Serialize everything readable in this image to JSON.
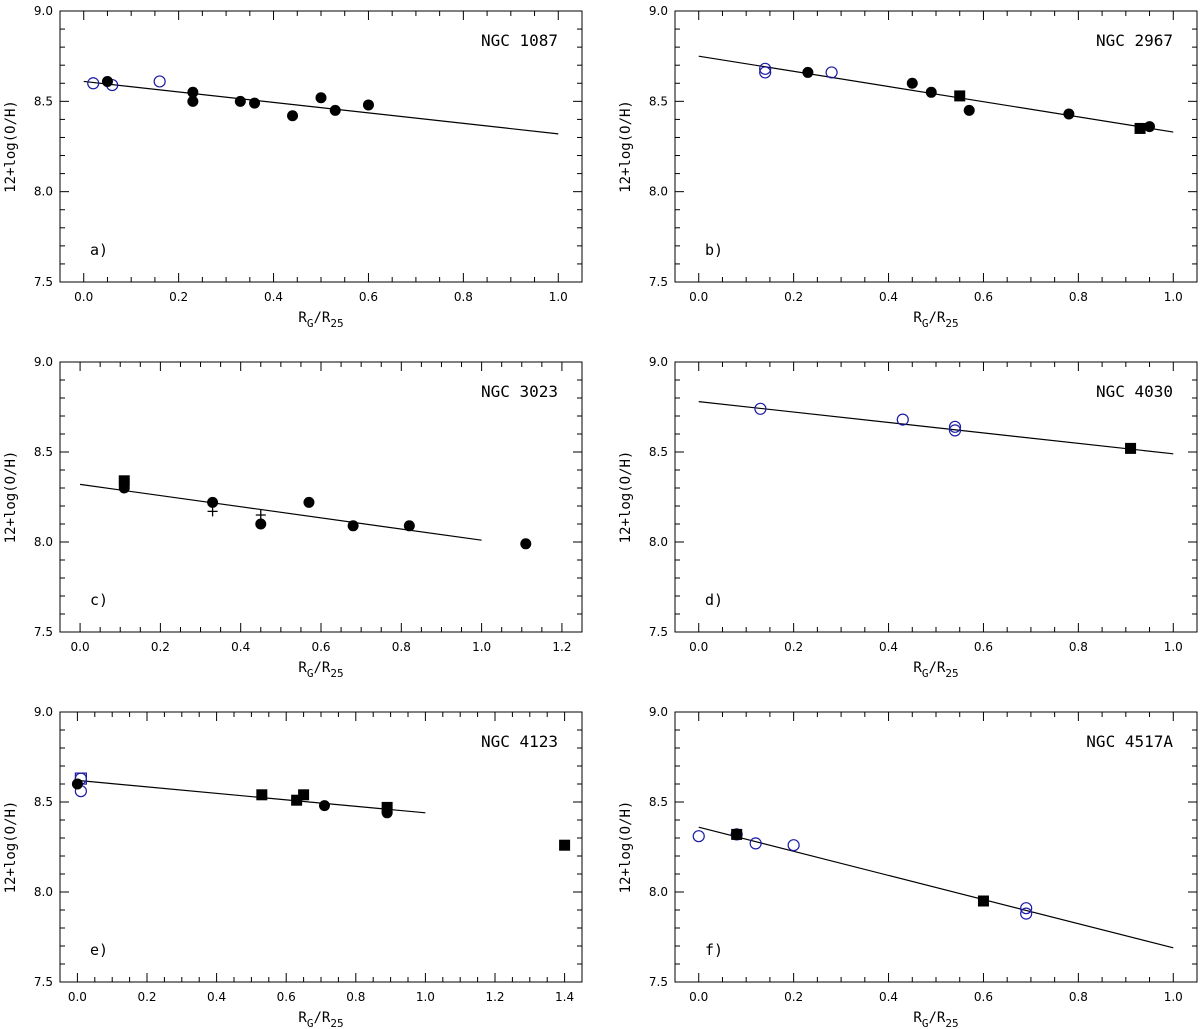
{
  "figure": {
    "ylabel": "12+log(O/H)",
    "xlabel_main": "R",
    "xlabel_sub1": "G",
    "xlabel_mid": "/R",
    "xlabel_sub2": "25"
  },
  "colors": {
    "open_marker": "#1a1aa6",
    "filled_marker": "#000000",
    "line": "#000000"
  },
  "chart_data": [
    {
      "type": "scatter",
      "panel": "a)",
      "title": "NGC 1087",
      "xlim": [
        -0.05,
        1.05
      ],
      "ylim": [
        7.5,
        9.0
      ],
      "xticks": [
        "0.0",
        "0.2",
        "0.4",
        "0.6",
        "0.8",
        "1.0"
      ],
      "yticks": [
        "7.5",
        "8.0",
        "8.5",
        "9.0"
      ],
      "fit": {
        "x": [
          0.0,
          1.0
        ],
        "y": [
          8.61,
          8.32
        ]
      },
      "series": [
        {
          "name": "open circles",
          "marker": "open-circle",
          "x": [
            0.02,
            0.06,
            0.16
          ],
          "y": [
            8.6,
            8.59,
            8.61
          ]
        },
        {
          "name": "filled circles",
          "marker": "filled-circle",
          "x": [
            0.05,
            0.23,
            0.23,
            0.33,
            0.36,
            0.44,
            0.5,
            0.53,
            0.6
          ],
          "y": [
            8.61,
            8.55,
            8.5,
            8.5,
            8.49,
            8.42,
            8.52,
            8.45,
            8.48
          ]
        }
      ]
    },
    {
      "type": "scatter",
      "panel": "b)",
      "title": "NGC 2967",
      "xlim": [
        -0.05,
        1.05
      ],
      "ylim": [
        7.5,
        9.0
      ],
      "xticks": [
        "0.0",
        "0.2",
        "0.4",
        "0.6",
        "0.8",
        "1.0"
      ],
      "yticks": [
        "7.5",
        "8.0",
        "8.5",
        "9.0"
      ],
      "fit": {
        "x": [
          0.0,
          1.0
        ],
        "y": [
          8.75,
          8.33
        ]
      },
      "series": [
        {
          "name": "open circles",
          "marker": "open-circle",
          "x": [
            0.14,
            0.14,
            0.28
          ],
          "y": [
            8.66,
            8.68,
            8.66
          ]
        },
        {
          "name": "filled circles",
          "marker": "filled-circle",
          "x": [
            0.23,
            0.45,
            0.49,
            0.57,
            0.78,
            0.95
          ],
          "y": [
            8.66,
            8.6,
            8.55,
            8.45,
            8.43,
            8.36
          ]
        },
        {
          "name": "filled squares",
          "marker": "filled-square",
          "x": [
            0.55,
            0.93
          ],
          "y": [
            8.53,
            8.35
          ]
        }
      ]
    },
    {
      "type": "scatter",
      "panel": "c)",
      "title": "NGC 3023",
      "xlim": [
        -0.05,
        1.25
      ],
      "ylim": [
        7.5,
        9.0
      ],
      "xticks": [
        "0.0",
        "0.2",
        "0.4",
        "0.6",
        "0.8",
        "1.0",
        "1.2"
      ],
      "yticks": [
        "7.5",
        "8.0",
        "8.5",
        "9.0"
      ],
      "fit": {
        "x": [
          0.0,
          1.0
        ],
        "y": [
          8.32,
          8.01
        ]
      },
      "series": [
        {
          "name": "filled circles",
          "marker": "filled-circle",
          "x": [
            0.11,
            0.33,
            0.45,
            0.57,
            0.68,
            0.82,
            1.11
          ],
          "y": [
            8.3,
            8.22,
            8.1,
            8.22,
            8.09,
            8.09,
            7.99
          ]
        },
        {
          "name": "filled squares",
          "marker": "filled-square",
          "x": [
            0.11
          ],
          "y": [
            8.34
          ]
        },
        {
          "name": "crosses",
          "marker": "cross",
          "x": [
            0.33,
            0.45
          ],
          "y": [
            8.17,
            8.15
          ]
        }
      ]
    },
    {
      "type": "scatter",
      "panel": "d)",
      "title": "NGC 4030",
      "xlim": [
        -0.05,
        1.05
      ],
      "ylim": [
        7.5,
        9.0
      ],
      "xticks": [
        "0.0",
        "0.2",
        "0.4",
        "0.6",
        "0.8",
        "1.0"
      ],
      "yticks": [
        "7.5",
        "8.0",
        "8.5",
        "9.0"
      ],
      "fit": {
        "x": [
          0.0,
          1.0
        ],
        "y": [
          8.78,
          8.49
        ]
      },
      "series": [
        {
          "name": "open circles",
          "marker": "open-circle",
          "x": [
            0.13,
            0.43,
            0.54,
            0.54
          ],
          "y": [
            8.74,
            8.68,
            8.62,
            8.64
          ]
        },
        {
          "name": "filled squares",
          "marker": "filled-square",
          "x": [
            0.91
          ],
          "y": [
            8.52
          ]
        }
      ]
    },
    {
      "type": "scatter",
      "panel": "e)",
      "title": "NGC 4123",
      "xlim": [
        -0.05,
        1.45
      ],
      "ylim": [
        7.5,
        9.0
      ],
      "xticks": [
        "0.0",
        "0.2",
        "0.4",
        "0.6",
        "0.8",
        "1.0",
        "1.2",
        "1.4"
      ],
      "yticks": [
        "7.5",
        "8.0",
        "8.5",
        "9.0"
      ],
      "fit": {
        "x": [
          0.0,
          1.0
        ],
        "y": [
          8.62,
          8.44
        ]
      },
      "series": [
        {
          "name": "open circles",
          "marker": "open-circle",
          "x": [
            0.01,
            0.01
          ],
          "y": [
            8.56,
            8.63
          ]
        },
        {
          "name": "open squares",
          "marker": "open-square",
          "x": [
            0.01
          ],
          "y": [
            8.63
          ]
        },
        {
          "name": "filled circles",
          "marker": "filled-circle",
          "x": [
            0.0,
            0.71,
            0.89
          ],
          "y": [
            8.6,
            8.48,
            8.44
          ]
        },
        {
          "name": "filled squares",
          "marker": "filled-square",
          "x": [
            0.53,
            0.63,
            0.65,
            0.89,
            1.4
          ],
          "y": [
            8.54,
            8.51,
            8.54,
            8.47,
            8.26
          ]
        }
      ]
    },
    {
      "type": "scatter",
      "panel": "f)",
      "title": "NGC 4517A",
      "xlim": [
        -0.05,
        1.05
      ],
      "ylim": [
        7.5,
        9.0
      ],
      "xticks": [
        "0.0",
        "0.2",
        "0.4",
        "0.6",
        "0.8",
        "1.0"
      ],
      "yticks": [
        "7.5",
        "8.0",
        "8.5",
        "9.0"
      ],
      "fit": {
        "x": [
          0.0,
          1.0
        ],
        "y": [
          8.36,
          7.69
        ]
      },
      "series": [
        {
          "name": "open circles",
          "marker": "open-circle",
          "x": [
            0.0,
            0.08,
            0.12,
            0.2,
            0.69,
            0.69
          ],
          "y": [
            8.31,
            8.32,
            8.27,
            8.26,
            7.91,
            7.88
          ]
        },
        {
          "name": "filled squares",
          "marker": "filled-square",
          "x": [
            0.08,
            0.6
          ],
          "y": [
            8.32,
            7.95
          ]
        }
      ]
    }
  ]
}
